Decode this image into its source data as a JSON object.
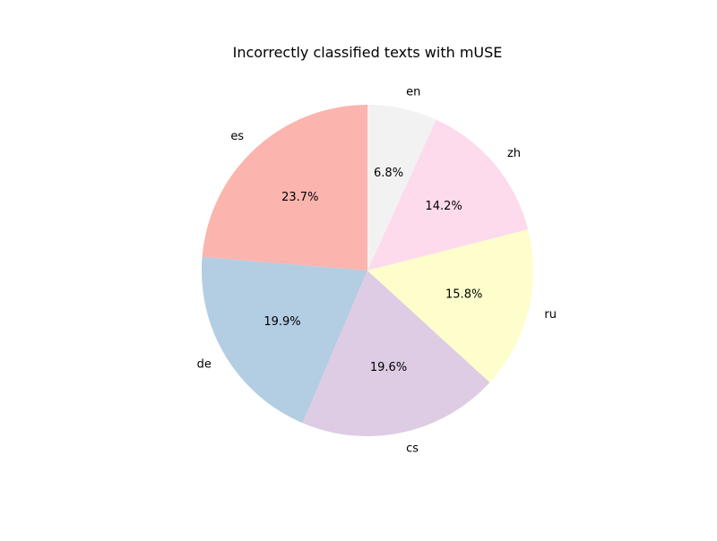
{
  "chart_data": {
    "type": "pie",
    "title": "Incorrectly classified texts with mUSE",
    "start_angle_deg": 90,
    "direction": "counterclockwise",
    "slices": [
      {
        "label": "es",
        "value": 23.7,
        "pct_label": "23.7%",
        "color": "#fbb4ae"
      },
      {
        "label": "de",
        "value": 19.9,
        "pct_label": "19.9%",
        "color": "#b3cde3"
      },
      {
        "label": "cs",
        "value": 19.6,
        "pct_label": "19.6%",
        "color": "#decbe4"
      },
      {
        "label": "ru",
        "value": 15.8,
        "pct_label": "15.8%",
        "color": "#fefecc"
      },
      {
        "label": "zh",
        "value": 14.2,
        "pct_label": "14.2%",
        "color": "#fddaec"
      },
      {
        "label": "en",
        "value": 6.8,
        "pct_label": "6.8%",
        "color": "#f2f2f2"
      }
    ]
  }
}
